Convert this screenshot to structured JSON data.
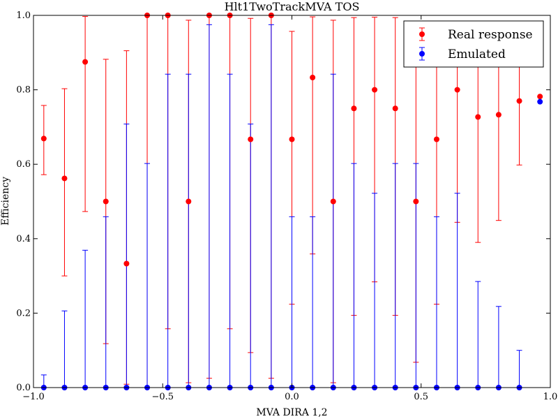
{
  "chart_data": {
    "type": "scatter",
    "title": "Hlt1TwoTrackMVA TOS",
    "xlabel": "MVA DIRA 1,2",
    "ylabel": "Efficiency",
    "xlim": [
      -1.0,
      1.0
    ],
    "ylim": [
      0.0,
      1.0
    ],
    "x_ticks": [
      "−1.0",
      "−0.5",
      "0.0",
      "0.5",
      "1.0"
    ],
    "y_ticks": [
      "0.0",
      "0.2",
      "0.4",
      "0.6",
      "0.8",
      "1.0"
    ],
    "grid": false,
    "legend_position": "top-right",
    "series": [
      {
        "name": "Real response",
        "color": "#ff0000",
        "points": [
          {
            "x": -0.96,
            "y": 0.669,
            "ylo": 0.572,
            "yhi": 0.758
          },
          {
            "x": -0.88,
            "y": 0.562,
            "ylo": 0.3,
            "yhi": 0.803
          },
          {
            "x": -0.8,
            "y": 0.875,
            "ylo": 0.473,
            "yhi": 0.997
          },
          {
            "x": -0.72,
            "y": 0.5,
            "ylo": 0.118,
            "yhi": 0.882
          },
          {
            "x": -0.64,
            "y": 0.333,
            "ylo": 0.009,
            "yhi": 0.905
          },
          {
            "x": -0.56,
            "y": 1.0,
            "ylo": 0.0,
            "yhi": 1.0
          },
          {
            "x": -0.48,
            "y": 1.0,
            "ylo": 0.158,
            "yhi": 1.0
          },
          {
            "x": -0.4,
            "y": 0.5,
            "ylo": 0.013,
            "yhi": 0.987
          },
          {
            "x": -0.32,
            "y": 1.0,
            "ylo": 0.025,
            "yhi": 1.0
          },
          {
            "x": -0.24,
            "y": 1.0,
            "ylo": 0.158,
            "yhi": 1.0
          },
          {
            "x": -0.16,
            "y": 0.667,
            "ylo": 0.094,
            "yhi": 0.992
          },
          {
            "x": -0.08,
            "y": 1.0,
            "ylo": 0.025,
            "yhi": 1.0
          },
          {
            "x": 0.0,
            "y": 0.667,
            "ylo": 0.224,
            "yhi": 0.957
          },
          {
            "x": 0.08,
            "y": 0.833,
            "ylo": 0.359,
            "yhi": 0.996
          },
          {
            "x": 0.16,
            "y": 0.5,
            "ylo": 0.013,
            "yhi": 0.987
          },
          {
            "x": 0.24,
            "y": 0.75,
            "ylo": 0.194,
            "yhi": 0.994
          },
          {
            "x": 0.32,
            "y": 0.8,
            "ylo": 0.284,
            "yhi": 0.995
          },
          {
            "x": 0.4,
            "y": 0.75,
            "ylo": 0.194,
            "yhi": 0.994
          },
          {
            "x": 0.48,
            "y": 0.5,
            "ylo": 0.068,
            "yhi": 0.932
          },
          {
            "x": 0.56,
            "y": 0.667,
            "ylo": 0.224,
            "yhi": 0.957
          },
          {
            "x": 0.64,
            "y": 0.8,
            "ylo": 0.444,
            "yhi": 0.975
          },
          {
            "x": 0.72,
            "y": 0.727,
            "ylo": 0.39,
            "yhi": 0.94
          },
          {
            "x": 0.8,
            "y": 0.733,
            "ylo": 0.449,
            "yhi": 0.922
          },
          {
            "x": 0.88,
            "y": 0.77,
            "ylo": 0.598,
            "yhi": 0.895
          },
          {
            "x": 0.96,
            "y": 0.782,
            "ylo": 0.782,
            "yhi": 0.782
          }
        ]
      },
      {
        "name": "Emulated",
        "color": "#0000ff",
        "points": [
          {
            "x": -0.96,
            "y": 0.0,
            "ylo": 0.0,
            "yhi": 0.034
          },
          {
            "x": -0.88,
            "y": 0.0,
            "ylo": 0.0,
            "yhi": 0.206
          },
          {
            "x": -0.8,
            "y": 0.0,
            "ylo": 0.0,
            "yhi": 0.369
          },
          {
            "x": -0.72,
            "y": 0.0,
            "ylo": 0.0,
            "yhi": 0.459
          },
          {
            "x": -0.64,
            "y": 0.0,
            "ylo": 0.0,
            "yhi": 0.708
          },
          {
            "x": -0.56,
            "y": 0.0,
            "ylo": 0.0,
            "yhi": 0.602
          },
          {
            "x": -0.48,
            "y": 0.0,
            "ylo": 0.0,
            "yhi": 0.842
          },
          {
            "x": -0.4,
            "y": 0.0,
            "ylo": 0.0,
            "yhi": 0.842
          },
          {
            "x": -0.32,
            "y": 0.0,
            "ylo": 0.0,
            "yhi": 0.975
          },
          {
            "x": -0.24,
            "y": 0.0,
            "ylo": 0.0,
            "yhi": 0.842
          },
          {
            "x": -0.16,
            "y": 0.0,
            "ylo": 0.0,
            "yhi": 0.708
          },
          {
            "x": -0.08,
            "y": 0.0,
            "ylo": 0.0,
            "yhi": 0.975
          },
          {
            "x": 0.0,
            "y": 0.0,
            "ylo": 0.0,
            "yhi": 0.459
          },
          {
            "x": 0.08,
            "y": 0.0,
            "ylo": 0.0,
            "yhi": 0.459
          },
          {
            "x": 0.16,
            "y": 0.0,
            "ylo": 0.0,
            "yhi": 0.842
          },
          {
            "x": 0.24,
            "y": 0.0,
            "ylo": 0.0,
            "yhi": 0.602
          },
          {
            "x": 0.32,
            "y": 0.0,
            "ylo": 0.0,
            "yhi": 0.522
          },
          {
            "x": 0.4,
            "y": 0.0,
            "ylo": 0.0,
            "yhi": 0.602
          },
          {
            "x": 0.48,
            "y": 0.0,
            "ylo": 0.0,
            "yhi": 0.602
          },
          {
            "x": 0.56,
            "y": 0.0,
            "ylo": 0.0,
            "yhi": 0.459
          },
          {
            "x": 0.64,
            "y": 0.0,
            "ylo": 0.0,
            "yhi": 0.522
          },
          {
            "x": 0.72,
            "y": 0.0,
            "ylo": 0.0,
            "yhi": 0.285
          },
          {
            "x": 0.8,
            "y": 0.0,
            "ylo": 0.0,
            "yhi": 0.218
          },
          {
            "x": 0.88,
            "y": 0.0,
            "ylo": 0.0,
            "yhi": 0.1
          },
          {
            "x": 0.96,
            "y": 0.768,
            "ylo": 0.768,
            "yhi": 0.768
          }
        ]
      }
    ]
  }
}
